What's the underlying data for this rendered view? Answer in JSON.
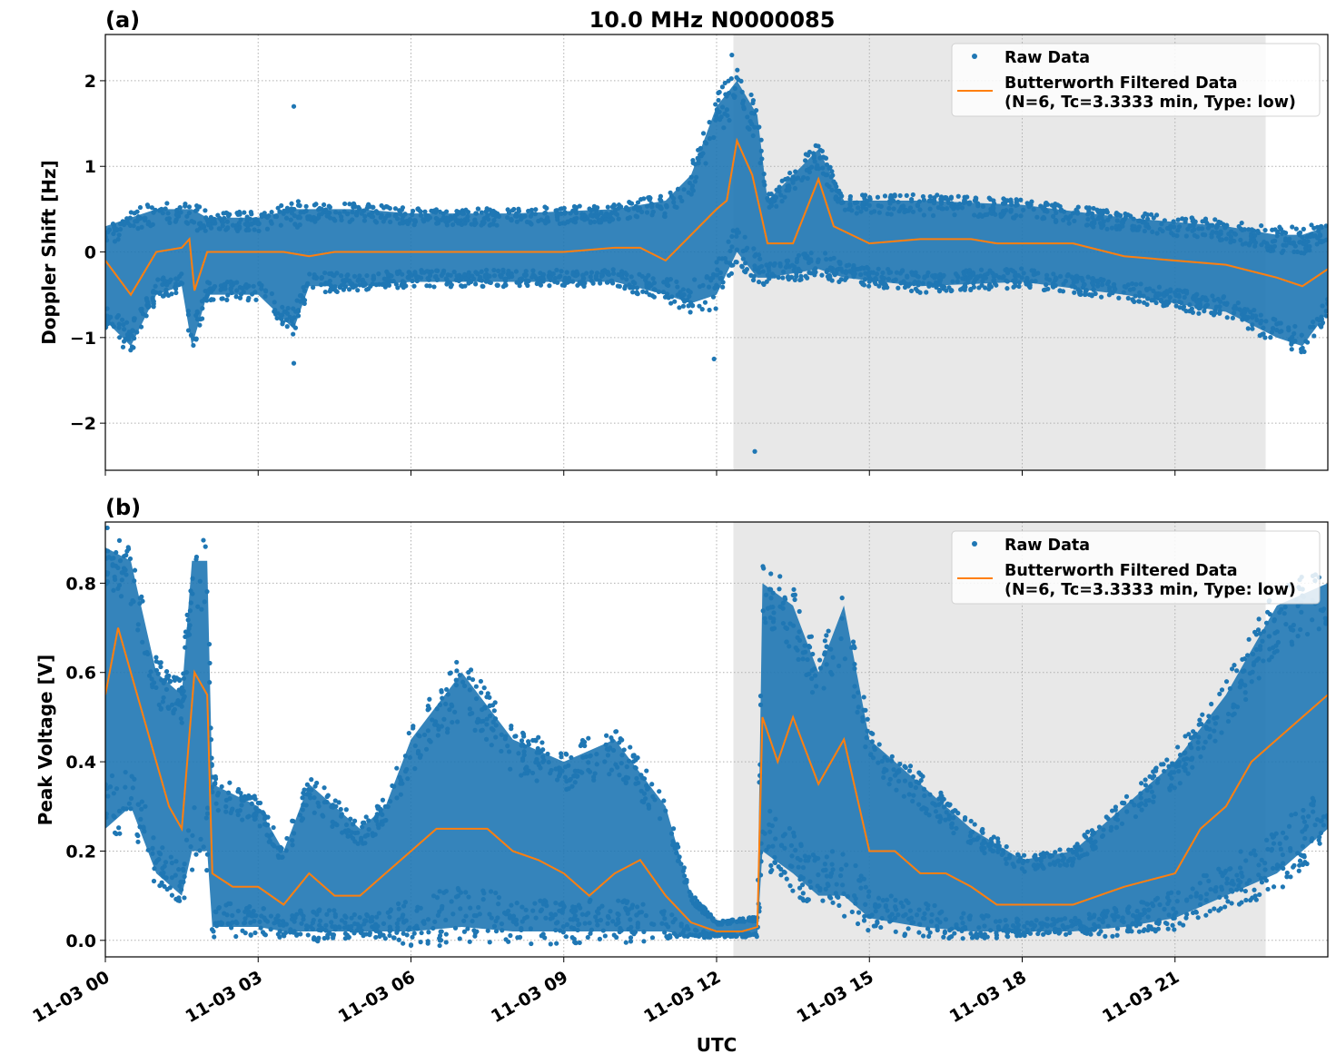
{
  "chart_data": [
    {
      "type": "scatter",
      "panel_label": "(a)",
      "title": "10.0 MHz N0000085",
      "xlabel": "",
      "ylabel": "Doppler Shift [Hz]",
      "xlim_hours": [
        0,
        24
      ],
      "ylim": [
        -2.55,
        2.54
      ],
      "yticks": [
        -2,
        -1,
        0,
        1,
        2
      ],
      "ytick_labels": [
        "−2",
        "−1",
        "0",
        "1",
        "2"
      ],
      "grid": true,
      "legend_placement": "upper right",
      "shaded_span_hours": [
        12.33,
        22.78
      ],
      "legend": [
        "Raw Data",
        "Butterworth Filtered Data",
        "(N=6, Tc=3.3333 min, Type: low)"
      ],
      "colors": {
        "raw": "#1f77b4",
        "filtered": "#ff7f0e",
        "shade": "#e8e8e8"
      },
      "raw_envelope": {
        "x": [
          0,
          0.5,
          1,
          1.5,
          1.7,
          2,
          3,
          3.7,
          4,
          5,
          6,
          8,
          10,
          11,
          11.5,
          12,
          12.4,
          12.8,
          13,
          14,
          14.5,
          16,
          18,
          20,
          22,
          23,
          23.5,
          24
        ],
        "lower": [
          -0.8,
          -1.1,
          -0.5,
          -0.4,
          -1.1,
          -0.5,
          -0.5,
          -0.9,
          -0.4,
          -0.4,
          -0.35,
          -0.35,
          -0.35,
          -0.5,
          -0.6,
          -0.5,
          0.0,
          -0.3,
          -0.3,
          -0.2,
          -0.3,
          -0.4,
          -0.35,
          -0.5,
          -0.7,
          -1.0,
          -1.1,
          -0.7
        ],
        "upper": [
          0.3,
          0.4,
          0.5,
          0.5,
          0.5,
          0.4,
          0.4,
          0.5,
          0.5,
          0.5,
          0.45,
          0.45,
          0.5,
          0.6,
          0.9,
          1.7,
          2.0,
          1.6,
          0.6,
          1.2,
          0.6,
          0.6,
          0.55,
          0.4,
          0.3,
          0.2,
          0.2,
          0.3
        ]
      },
      "outliers": {
        "x": [
          3.7,
          3.7,
          12.75,
          11.95,
          12.3
        ],
        "y": [
          1.7,
          -1.3,
          -2.33,
          -1.25,
          2.3
        ]
      },
      "filtered": {
        "x": [
          0,
          0.5,
          1,
          1.5,
          1.65,
          1.75,
          2,
          2.5,
          3,
          3.5,
          4,
          4.5,
          5,
          5.5,
          6,
          7,
          8,
          9,
          10,
          10.5,
          11,
          11.5,
          12,
          12.2,
          12.4,
          12.7,
          13,
          13.5,
          14,
          14.3,
          15,
          16,
          17,
          17.5,
          18,
          19,
          20,
          21,
          22,
          23,
          23.5,
          24
        ],
        "y": [
          -0.1,
          -0.5,
          0.0,
          0.05,
          0.15,
          -0.45,
          0.0,
          0.0,
          0.0,
          0.0,
          -0.05,
          0.0,
          0.0,
          0.0,
          0.0,
          0.0,
          0.0,
          0.0,
          0.05,
          0.05,
          -0.1,
          0.2,
          0.5,
          0.6,
          1.3,
          0.9,
          0.1,
          0.1,
          0.85,
          0.3,
          0.1,
          0.15,
          0.15,
          0.1,
          0.1,
          0.1,
          -0.05,
          -0.1,
          -0.15,
          -0.3,
          -0.4,
          -0.2
        ]
      }
    },
    {
      "type": "scatter",
      "panel_label": "(b)",
      "xlabel": "UTC",
      "ylabel": "Peak Voltage [V]",
      "xlim_hours": [
        0,
        24
      ],
      "ylim": [
        -0.037,
        0.937
      ],
      "yticks": [
        0,
        0.2,
        0.4,
        0.6,
        0.8
      ],
      "ytick_labels": [
        "0.0",
        "0.2",
        "0.4",
        "0.6",
        "0.8"
      ],
      "xticks_hours": [
        0,
        3,
        6,
        9,
        12,
        15,
        18,
        21
      ],
      "xtick_labels": [
        "11-03 00",
        "11-03 03",
        "11-03 06",
        "11-03 09",
        "11-03 12",
        "11-03 15",
        "11-03 18",
        "11-03 21"
      ],
      "grid": true,
      "legend_placement": "upper right",
      "shaded_span_hours": [
        12.33,
        22.78
      ],
      "legend": [
        "Raw Data",
        "Butterworth Filtered Data",
        "(N=6, Tc=3.3333 min, Type: low)"
      ],
      "raw_envelope": {
        "x": [
          0,
          0.5,
          1,
          1.5,
          1.7,
          2,
          2.1,
          3,
          3.5,
          4,
          5,
          5.5,
          6,
          7,
          8,
          9,
          10,
          11,
          11.5,
          12,
          12.8,
          12.9,
          13.5,
          14,
          14.5,
          15,
          16,
          17,
          18,
          19,
          20,
          21,
          22,
          23,
          24
        ],
        "lower": [
          0.25,
          0.3,
          0.15,
          0.1,
          0.2,
          0.2,
          0.03,
          0.03,
          0.02,
          0.02,
          0.02,
          0.02,
          0.02,
          0.03,
          0.02,
          0.02,
          0.02,
          0.02,
          0.01,
          0.01,
          0.01,
          0.2,
          0.15,
          0.1,
          0.1,
          0.05,
          0.03,
          0.02,
          0.02,
          0.02,
          0.03,
          0.05,
          0.1,
          0.15,
          0.25
        ],
        "upper": [
          0.88,
          0.85,
          0.6,
          0.55,
          0.85,
          0.85,
          0.35,
          0.3,
          0.2,
          0.35,
          0.25,
          0.3,
          0.45,
          0.6,
          0.45,
          0.4,
          0.45,
          0.3,
          0.1,
          0.04,
          0.05,
          0.8,
          0.75,
          0.6,
          0.75,
          0.45,
          0.35,
          0.25,
          0.18,
          0.2,
          0.3,
          0.4,
          0.55,
          0.75,
          0.8
        ]
      },
      "filtered": {
        "x": [
          0,
          0.25,
          0.5,
          0.75,
          1,
          1.25,
          1.5,
          1.75,
          2,
          2.1,
          2.5,
          3,
          3.5,
          4,
          4.5,
          5,
          5.5,
          6,
          6.5,
          7,
          7.5,
          8,
          8.5,
          9,
          9.5,
          10,
          10.5,
          11,
          11.5,
          12,
          12.5,
          12.8,
          12.9,
          13.2,
          13.5,
          14,
          14.5,
          15,
          15.5,
          16,
          16.5,
          17,
          17.5,
          18,
          19,
          20,
          21,
          21.5,
          22,
          22.5,
          23,
          23.5,
          24
        ],
        "y": [
          0.55,
          0.7,
          0.6,
          0.5,
          0.4,
          0.3,
          0.25,
          0.6,
          0.55,
          0.15,
          0.12,
          0.12,
          0.08,
          0.15,
          0.1,
          0.1,
          0.15,
          0.2,
          0.25,
          0.25,
          0.25,
          0.2,
          0.18,
          0.15,
          0.1,
          0.15,
          0.18,
          0.1,
          0.04,
          0.02,
          0.02,
          0.03,
          0.5,
          0.4,
          0.5,
          0.35,
          0.45,
          0.2,
          0.2,
          0.15,
          0.15,
          0.12,
          0.08,
          0.08,
          0.08,
          0.12,
          0.15,
          0.25,
          0.3,
          0.4,
          0.45,
          0.5,
          0.55
        ]
      }
    }
  ]
}
